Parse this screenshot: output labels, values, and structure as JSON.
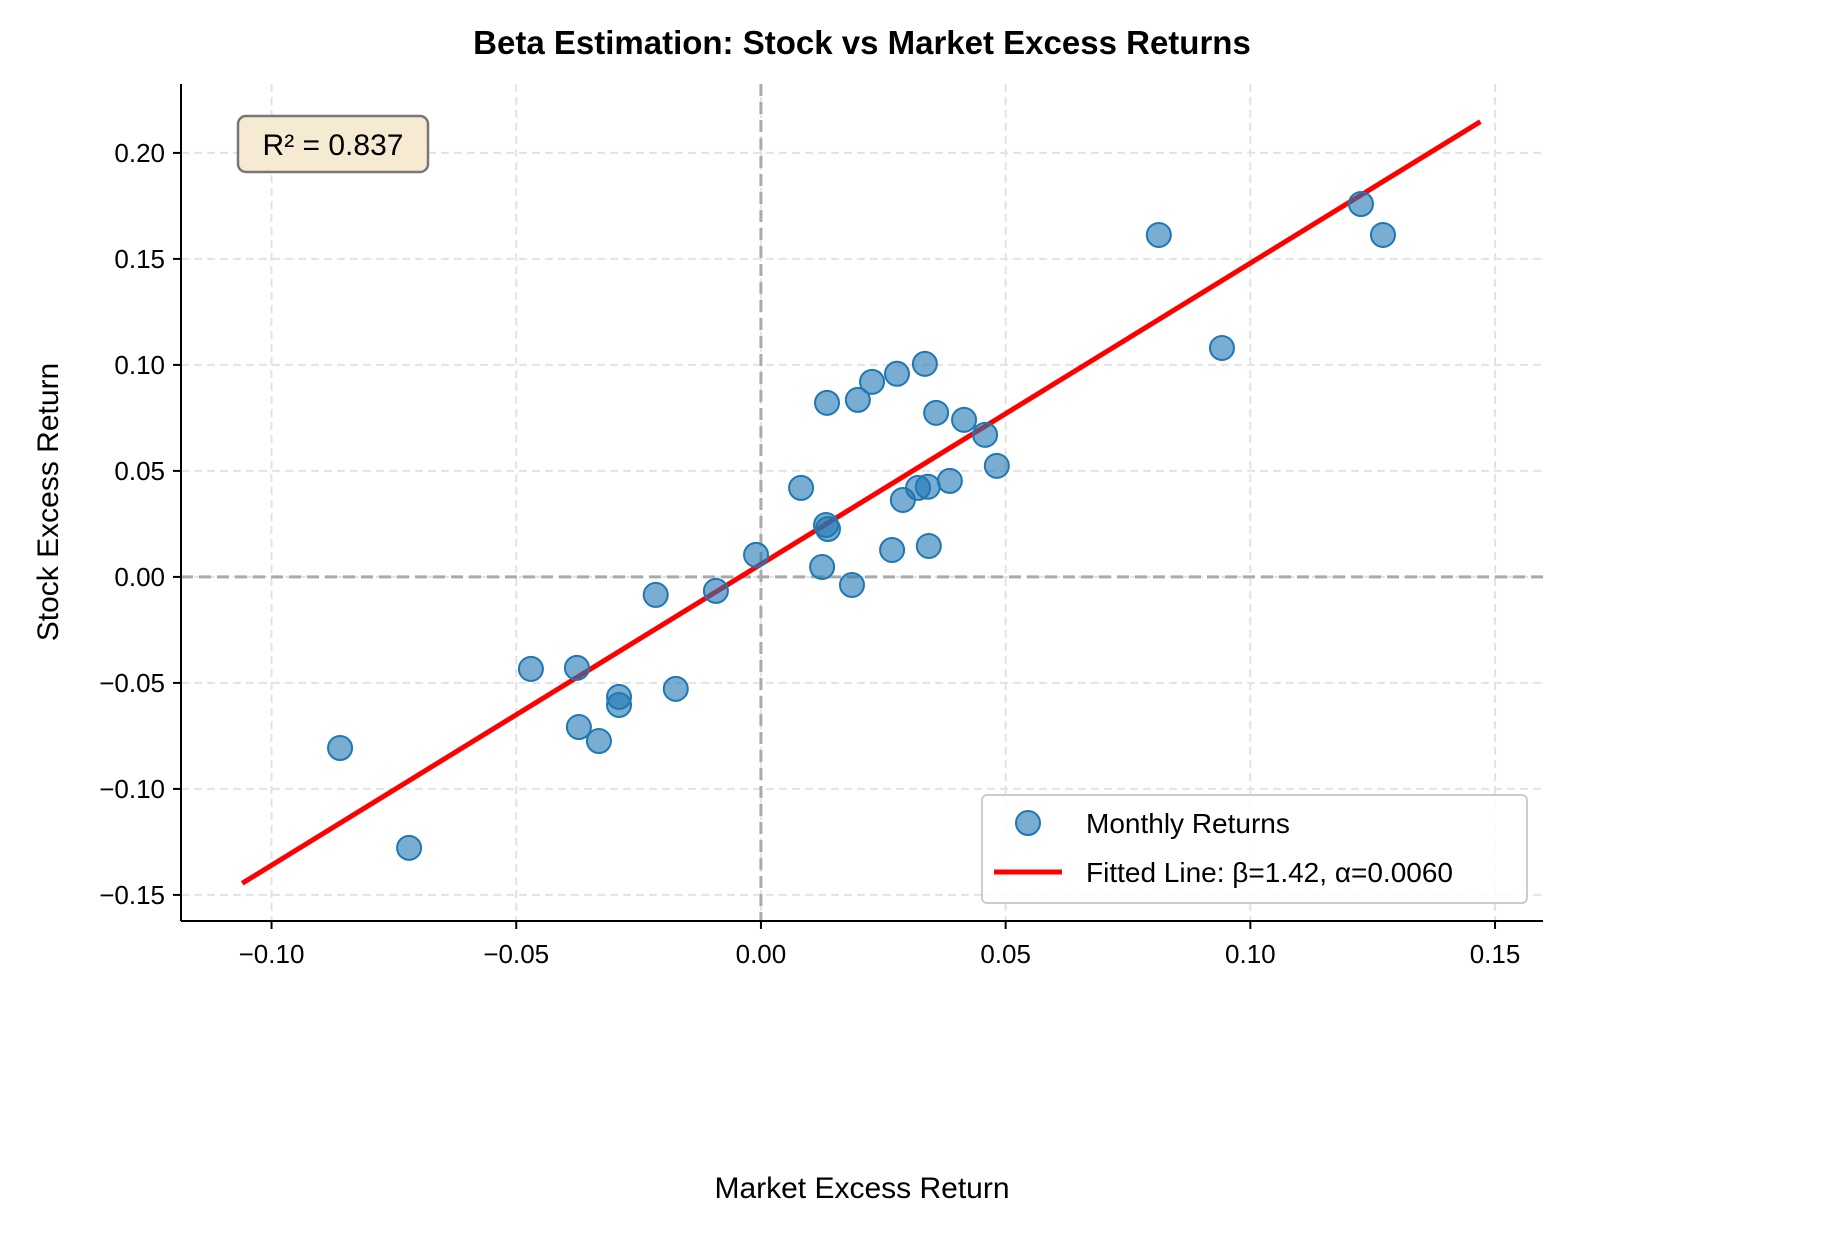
{
  "chart_data": {
    "type": "scatter",
    "title": "Beta Estimation: Stock vs Market Excess Returns",
    "xlabel": "Market Excess Return",
    "ylabel": "Stock Excess Return",
    "xlim": [
      -0.1185,
      0.1598
    ],
    "ylim": [
      -0.1623,
      0.2325
    ],
    "xticks": [
      -0.1,
      -0.05,
      0.0,
      0.05,
      0.1,
      0.15
    ],
    "xtick_labels": [
      "−0.10",
      "−0.05",
      "0.00",
      "0.05",
      "0.10",
      "0.15"
    ],
    "yticks": [
      -0.15,
      -0.1,
      -0.05,
      0.0,
      0.05,
      0.1,
      0.15,
      0.2
    ],
    "ytick_labels": [
      "−0.15",
      "−0.10",
      "−0.05",
      "0.00",
      "0.05",
      "0.10",
      "0.15",
      "0.20"
    ],
    "grid": true,
    "legend_position": "bottom-right",
    "annotation": "R² = 0.837",
    "series": [
      {
        "name": "Monthly Returns",
        "type": "scatter",
        "color": "#1f77b4",
        "points": [
          [
            -0.086,
            -0.0807
          ],
          [
            -0.0719,
            -0.1278
          ],
          [
            -0.047,
            -0.0434
          ],
          [
            -0.0376,
            -0.0429
          ],
          [
            -0.0372,
            -0.0708
          ],
          [
            -0.0331,
            -0.0774
          ],
          [
            -0.029,
            -0.0566
          ],
          [
            -0.029,
            -0.0604
          ],
          [
            -0.0215,
            -0.0085
          ],
          [
            -0.0174,
            -0.0528
          ],
          [
            -0.0092,
            -0.0066
          ],
          [
            -0.001,
            0.0104
          ],
          [
            0.0082,
            0.042
          ],
          [
            0.0125,
            0.0047
          ],
          [
            0.0133,
            0.0245
          ],
          [
            0.0137,
            0.0226
          ],
          [
            0.0135,
            0.0821
          ],
          [
            0.0186,
            -0.0038
          ],
          [
            0.0198,
            0.0835
          ],
          [
            0.0227,
            0.092
          ],
          [
            0.0268,
            0.0127
          ],
          [
            0.0278,
            0.0958
          ],
          [
            0.029,
            0.0363
          ],
          [
            0.0321,
            0.042
          ],
          [
            0.0335,
            0.1005
          ],
          [
            0.0341,
            0.0425
          ],
          [
            0.0343,
            0.0146
          ],
          [
            0.0358,
            0.0774
          ],
          [
            0.0386,
            0.0453
          ],
          [
            0.0415,
            0.0741
          ],
          [
            0.0458,
            0.067
          ],
          [
            0.0482,
            0.0524
          ],
          [
            0.0813,
            0.1613
          ],
          [
            0.0942,
            0.108
          ],
          [
            0.1226,
            0.1759
          ],
          [
            0.1271,
            0.1613
          ]
        ]
      },
      {
        "name": "Fitted Line: β=1.42, α=0.0060",
        "type": "line",
        "color": "#ff0000",
        "beta": 1.42,
        "alpha": 0.006,
        "x_range": [
          -0.106,
          0.147
        ]
      }
    ]
  }
}
